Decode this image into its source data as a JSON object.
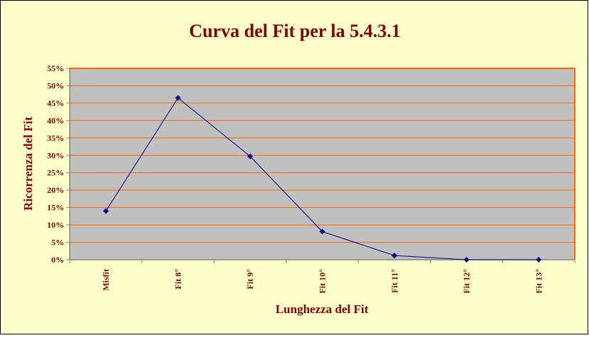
{
  "chart_data": {
    "type": "line",
    "title": "Curva del Fit per la 5.4.3.1",
    "xlabel": "Lunghezza del Fit",
    "ylabel": "Ricorrenza del Fit",
    "categories": [
      "Misfit",
      "Fit 8°",
      "Fit 9°",
      "Fit 10°",
      "Fit 11°",
      "Fit 12°",
      "Fit 13°"
    ],
    "series": [
      {
        "values": [
          14,
          46.5,
          29.7,
          8.1,
          1.2,
          0,
          0
        ]
      }
    ],
    "ylim": [
      0,
      55
    ],
    "yticks": [
      0,
      5,
      10,
      15,
      20,
      25,
      30,
      35,
      40,
      45,
      50,
      55
    ],
    "ytick_labels": [
      "0%",
      "5%",
      "10%",
      "15%",
      "20%",
      "25%",
      "30%",
      "35%",
      "40%",
      "45%",
      "50%",
      "55%"
    ],
    "grid": true,
    "legend": "none",
    "colors": {
      "background": "#FFFFCC",
      "plot_area": "#C0C0C0",
      "gridline": "#FF6600",
      "plot_border_top_right": "#FF6600",
      "axis_line": "#808080",
      "line": "#000080",
      "marker": "#000080",
      "title_text": "#800000",
      "tick_text": "#800000",
      "outer_border": "#000000"
    }
  }
}
